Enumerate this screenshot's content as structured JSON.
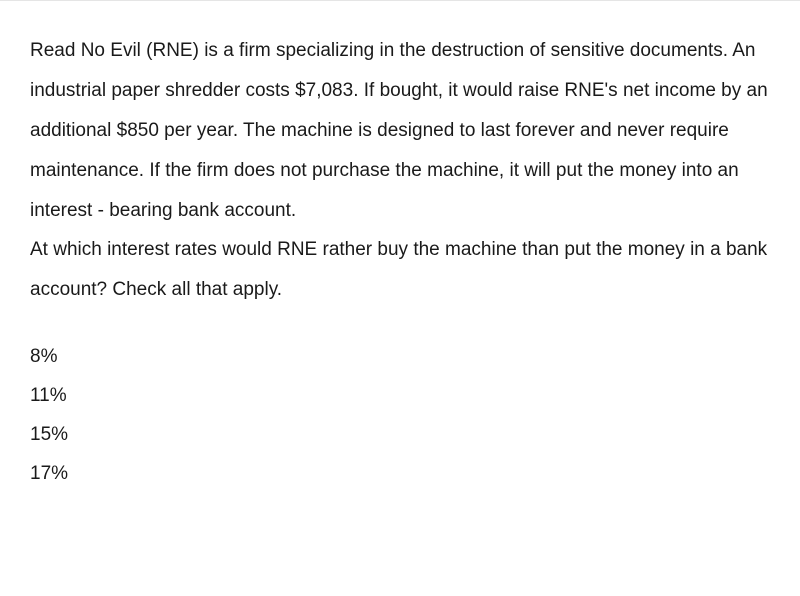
{
  "question": {
    "body": "Read No Evil (RNE) is a firm specializing in the destruction of sensitive documents. An industrial paper shredder costs $7,083. If bought, it would raise RNE's net income by an additional $850 per year. The machine is designed to last forever and never require maintenance. If the firm does not purchase the machine, it will put the money into an interest - bearing bank account.",
    "prompt": "At which interest rates would RNE rather buy the machine than put the money in a bank account? Check all that apply."
  },
  "options": [
    {
      "label": "8%"
    },
    {
      "label": "11%"
    },
    {
      "label": "15%"
    },
    {
      "label": "17%"
    }
  ]
}
